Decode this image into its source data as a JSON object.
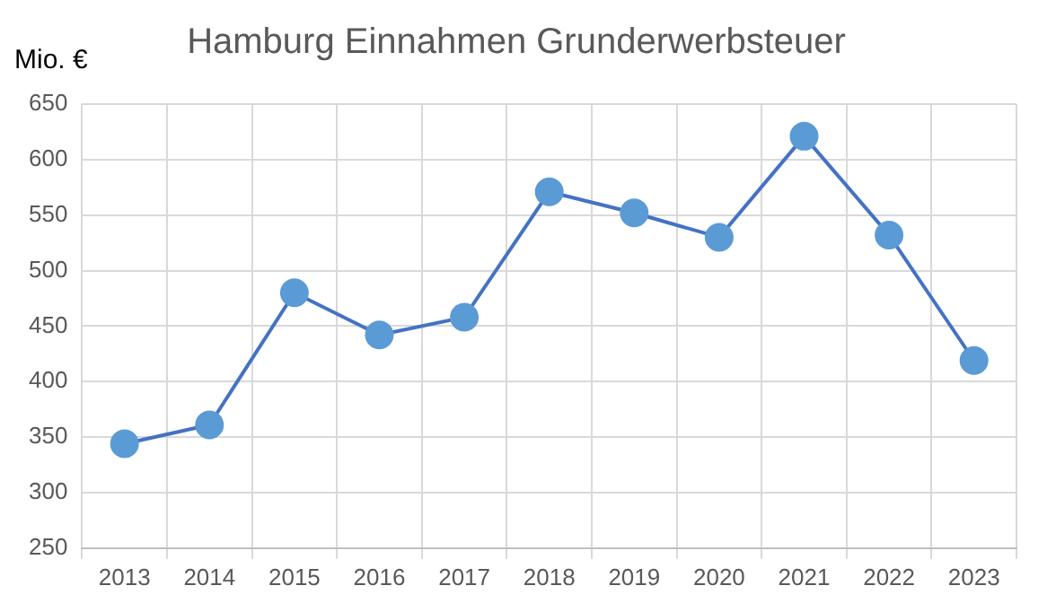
{
  "chart_data": {
    "type": "line",
    "title": "Hamburg Einnahmen Grunderwerbsteuer",
    "ylabel": "Mio. €",
    "categories": [
      "2013",
      "2014",
      "2015",
      "2016",
      "2017",
      "2018",
      "2019",
      "2020",
      "2021",
      "2022",
      "2023"
    ],
    "series": [
      {
        "color": "#4472c4",
        "values": [
          344,
          361,
          480,
          442,
          458,
          571,
          552,
          530,
          621,
          532,
          419
        ]
      }
    ],
    "ylim": [
      250,
      650
    ],
    "yticks": [
      250,
      300,
      350,
      400,
      450,
      500,
      550,
      600,
      650
    ],
    "grid": true,
    "marker": "circle",
    "line_style": "solid"
  }
}
